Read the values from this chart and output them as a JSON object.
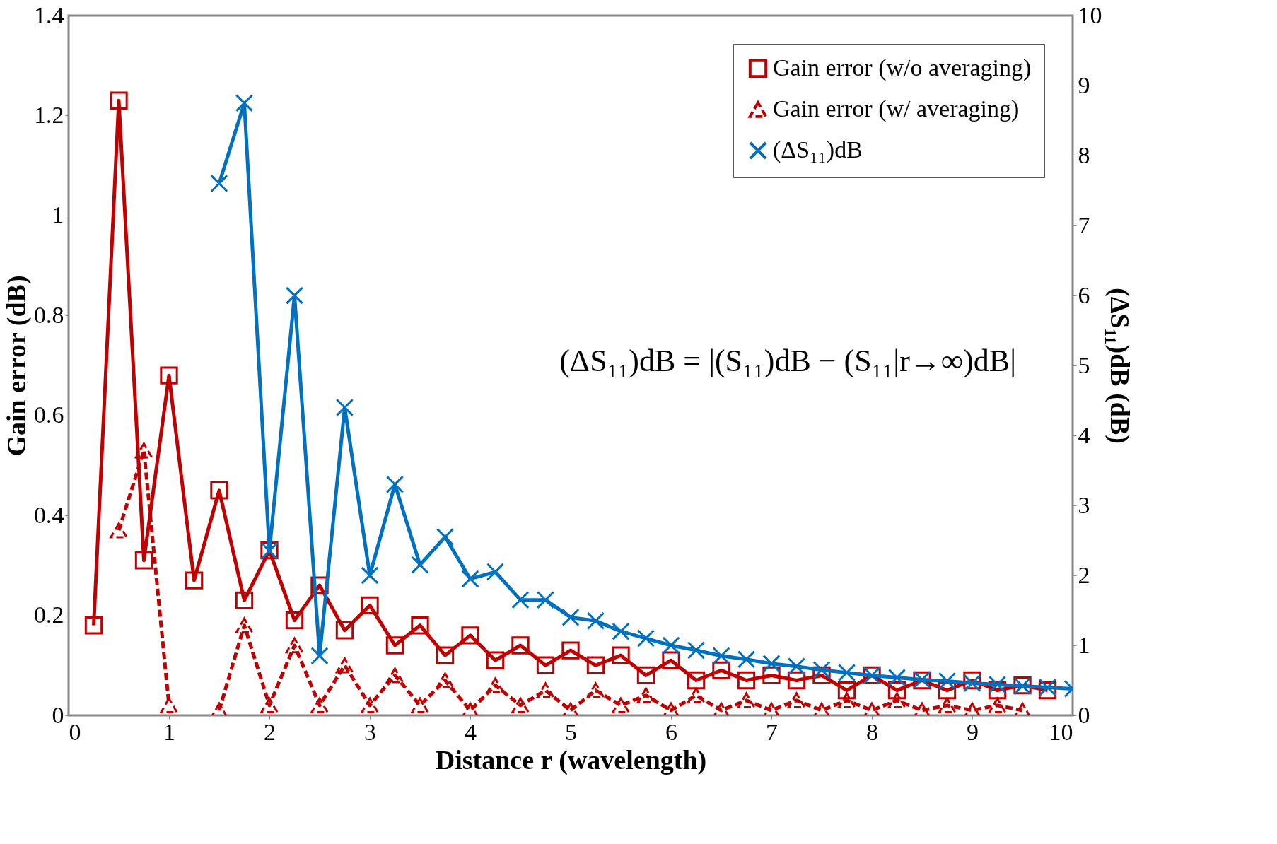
{
  "chart_data": {
    "type": "line",
    "xlabel": "Distance r (wavelength)",
    "ylabel": "Gain error (dB)",
    "y2label": "(ΔS₁₁)dB (dB)",
    "xlim": [
      0,
      10
    ],
    "xticks": [
      0,
      1,
      2,
      3,
      4,
      5,
      6,
      7,
      8,
      9,
      10
    ],
    "ylim": [
      0,
      1.4
    ],
    "yticks": [
      0,
      0.2,
      0.4,
      0.6,
      0.8,
      1,
      1.2,
      1.4
    ],
    "y2lim": [
      0,
      10
    ],
    "y2ticks": [
      0,
      1,
      2,
      3,
      4,
      5,
      6,
      7,
      8,
      9,
      10
    ],
    "grid": false,
    "legend": "top right",
    "annotations": [
      "(ΔS₁₁)dB = |(S₁₁)dB − (S₁₁|r→∞)dB|"
    ],
    "series": [
      {
        "name": "Gain error (w/o averaging)",
        "color": "#c00000",
        "marker": "square",
        "line_style": "solid",
        "x": [
          0.25,
          0.5,
          0.75,
          1,
          1.25,
          1.5,
          1.75,
          2,
          2.25,
          2.5,
          2.75,
          3,
          3.25,
          3.5,
          3.75,
          4,
          4.25,
          4.5,
          4.75,
          5,
          5.25,
          5.5,
          5.75,
          6,
          6.25,
          6.5,
          6.75,
          7,
          7.25,
          7.5,
          7.75,
          8,
          8.25,
          8.5,
          8.75,
          9,
          9.25,
          9.5,
          9.75
        ],
        "values": [
          0.18,
          1.23,
          0.31,
          0.68,
          0.27,
          0.45,
          0.23,
          0.33,
          0.19,
          0.26,
          0.17,
          0.22,
          0.14,
          0.18,
          0.12,
          0.16,
          0.11,
          0.14,
          0.1,
          0.13,
          0.1,
          0.12,
          0.08,
          0.11,
          0.07,
          0.09,
          0.07,
          0.08,
          0.07,
          0.08,
          0.05,
          0.08,
          0.05,
          0.07,
          0.05,
          0.07,
          0.05,
          0.06,
          0.05
        ]
      },
      {
        "name": "Gain error (w/ averaging)",
        "color": "#c00000",
        "marker": "triangle",
        "line_style": "dashed",
        "x": [
          0.5,
          0.75,
          1,
          1.25,
          1.5,
          1.75,
          2,
          2.25,
          2.5,
          2.75,
          3,
          3.25,
          3.5,
          3.75,
          4,
          4.25,
          4.5,
          4.75,
          5,
          5.25,
          5.5,
          5.75,
          6,
          6.25,
          6.5,
          6.75,
          7,
          7.25,
          7.5,
          7.75,
          8,
          8.25,
          8.5,
          8.75,
          9,
          9.25,
          9.5
        ],
        "values": [
          0.37,
          0.53,
          0.02,
          null,
          0.01,
          0.18,
          0.02,
          0.14,
          0.02,
          0.1,
          0.02,
          0.08,
          0.02,
          0.07,
          0.01,
          0.06,
          0.02,
          0.05,
          0.01,
          0.05,
          0.02,
          0.04,
          0.01,
          0.04,
          0.01,
          0.03,
          0.01,
          0.03,
          0.01,
          0.03,
          0.01,
          0.03,
          0.01,
          0.02,
          0.01,
          0.02,
          0.01
        ]
      },
      {
        "name": "(ΔS₁₁)dB",
        "color": "#0070c0",
        "marker": "cross",
        "line_style": "solid",
        "axis": "y2",
        "x": [
          1.5,
          1.75,
          2,
          2.25,
          2.5,
          2.75,
          3,
          3.25,
          3.5,
          3.75,
          4,
          4.25,
          4.5,
          4.75,
          5,
          5.25,
          5.5,
          5.75,
          6,
          6.25,
          6.5,
          6.75,
          7,
          7.25,
          7.5,
          7.75,
          8,
          8.25,
          8.5,
          8.75,
          9,
          9.25,
          9.5,
          9.75,
          10
        ],
        "values": [
          7.6,
          8.75,
          2.35,
          6.0,
          0.85,
          4.4,
          2.0,
          3.3,
          2.15,
          2.55,
          1.95,
          2.05,
          1.65,
          1.65,
          1.4,
          1.35,
          1.2,
          1.1,
          1.0,
          0.93,
          0.85,
          0.8,
          0.74,
          0.7,
          0.65,
          0.61,
          0.57,
          0.54,
          0.51,
          0.49,
          0.46,
          0.44,
          0.42,
          0.4,
          0.38
        ]
      }
    ]
  }
}
